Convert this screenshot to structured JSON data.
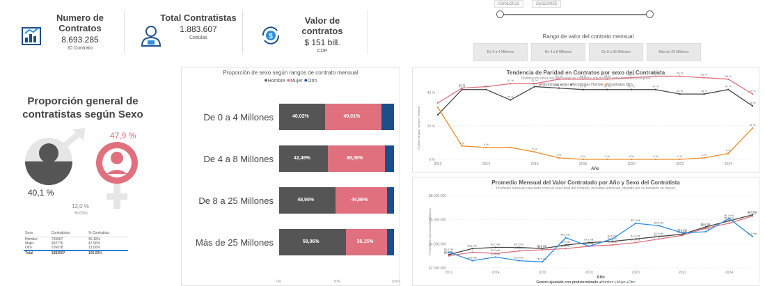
{
  "kpis": [
    {
      "title": "Numero de Contratos",
      "value": "8.693.285",
      "sub": "ID Contrato",
      "icon": "chart-document-icon"
    },
    {
      "title": "Total Contratistas",
      "value": "1.883.607",
      "sub": "Cedulas",
      "icon": "person-badge-icon"
    },
    {
      "title": "Valor de contratos",
      "value": "$ 151 bill.",
      "sub": "CDP",
      "icon": "dollar-refresh-icon"
    }
  ],
  "date_slicer": {
    "start": "01/01/2012",
    "end": "26/12/2025"
  },
  "range_slicer": {
    "title": "Rango de valor del contrato mensual",
    "buttons": [
      "De 0 a 4 Millones",
      "De 4 a 8 Millones",
      "De 8 a 25 Millones",
      "Más de 25 Millones"
    ]
  },
  "gender_panel": {
    "title": "Proporción general de contratistas según Sexo",
    "female_pct": "47,9 %",
    "male_pct": "40,1 %",
    "other_pct": "12,0 %",
    "other_label": "% Otro",
    "colors": {
      "male": "#555555",
      "female": "#e0707e",
      "other": "#1c4f8a"
    },
    "table": {
      "headers": [
        "Sexo",
        "Contratistas",
        "% Contratista"
      ],
      "rows": [
        [
          "Hombre",
          "755067",
          "40,10%"
        ],
        [
          "Mujer",
          "902776",
          "47,90%"
        ],
        [
          "Otro",
          "226078",
          "12,00%"
        ]
      ],
      "total": [
        "Total",
        "1883607",
        "100,00%"
      ]
    }
  },
  "chart_data": [
    {
      "type": "bar",
      "orientation": "horizontal-stacked-100",
      "title": "Proporción de sexo según rangos de contrato mensual",
      "legend": [
        "Hombre",
        "Mujer",
        "Otro"
      ],
      "legend_position": "top",
      "categories": [
        "De 0 a 4 Millones",
        "De 4 a 8 Millones",
        "De 8 a 25 Millones",
        "Más de 25 Millones"
      ],
      "series": [
        {
          "name": "Hombre",
          "color": "#555555",
          "values": [
            40.02,
            42.49,
            48.9,
            58.06
          ],
          "labels": [
            "40,02%",
            "42,49%",
            "48,90%",
            "58,06%"
          ]
        },
        {
          "name": "Mujer",
          "color": "#e0707e",
          "values": [
            49.01,
            49.36,
            44.86,
            36.15
          ],
          "labels": [
            "49,01%",
            "49,36%",
            "44,86%",
            "36,15%"
          ]
        },
        {
          "name": "Otro",
          "color": "#1c4f8a",
          "values": [
            10.97,
            8.15,
            6.24,
            5.79
          ]
        }
      ],
      "x_ticks": [
        "0%",
        "50%",
        "100%"
      ]
    },
    {
      "type": "line",
      "title": "Tendencia de Paridad en Contratos por sexo del Contratista",
      "subtitle": "Distribución anual del porcentaje de contratos adjudicados entre hombres y mujeres",
      "legend": [
        "%Contratos mujer",
        "%Contratos Hombre",
        "%Contratos Otro"
      ],
      "xlabel": "Año",
      "ylabel": "Número (ángulo, Número, Hombre, ...",
      "x": [
        2012,
        2013,
        2014,
        2015,
        2016,
        2017,
        2018,
        2019,
        2020,
        2021,
        2022,
        2023,
        2024,
        2025
      ],
      "x_ticks": [
        "2012",
        "2014",
        "2016",
        "2018",
        "2020",
        "2022",
        "2024"
      ],
      "y_ticks": [
        "0 %",
        "20 %",
        "40 %"
      ],
      "ylim": [
        0,
        45
      ],
      "series": [
        {
          "name": "%Contratos mujer",
          "color": "#e0707e",
          "values": [
            38,
            48,
            49,
            51,
            51,
            54,
            54,
            54,
            55,
            56,
            56,
            55,
            54,
            44
          ]
        },
        {
          "name": "%Contratos Hombre",
          "color": "#444444",
          "values": [
            30,
            47,
            47,
            40,
            49,
            48,
            47,
            47,
            47,
            47,
            44,
            44,
            47,
            36
          ]
        },
        {
          "name": "%Contratos Otro",
          "color": "#f08c28",
          "values": [
            35,
            9,
            8,
            8,
            5,
            1,
            0,
            0,
            0,
            0,
            0,
            1,
            4,
            21
          ]
        }
      ],
      "point_labels": {
        "%Contratos mujer": [
          "",
          "48 %",
          "",
          "51 %",
          "51 %",
          "54 %",
          "54 %",
          "54 %",
          "55 %",
          "56 %",
          "56 %",
          "55 %",
          "54 %",
          "44 %"
        ],
        "%Contratos Hombre": [
          "",
          "47 %",
          "47 %",
          "40 %",
          "49 %",
          "48 %",
          "47 %",
          "47 %",
          "47 %",
          "47 %",
          "44 %",
          "44 %",
          "47 %",
          "36 %"
        ],
        "%Contratos Otro": [
          "",
          "9 %",
          "8 %",
          "",
          "5 %",
          "1 %",
          "0 %",
          "0 %",
          "0 %",
          "0 %",
          "0 %",
          "1 %",
          "4 %",
          "21 %"
        ]
      }
    },
    {
      "type": "line",
      "title": "Promedio Mensual del Valor Contratado por Año y Sexo del Contratista",
      "subtitle": "Promedio mensual calculado como el valor total del contrato, incluidas adiciones, dividido por su duración en meses",
      "legend_title": "Genero ajustado con predeterminado",
      "legend": [
        "Hombre",
        "Mujer",
        "Otro"
      ],
      "xlabel": "Año",
      "ylabel": "Promedio de Valor mensual (Millones)",
      "x": [
        2012,
        2013,
        2014,
        2015,
        2016,
        2017,
        2018,
        2019,
        2020,
        2021,
        2022,
        2023,
        2024,
        2025
      ],
      "x_ticks": [
        "2012",
        "2014",
        "2016",
        "2018",
        "2020",
        "2022",
        "2024"
      ],
      "y_ticks": [
        "$2.000.000",
        "$4.000.000",
        "$6.000.000",
        "$8.000.000"
      ],
      "ylim": [
        2,
        8
      ],
      "series": [
        {
          "name": "Hombre",
          "color": "#444444",
          "values": [
            3.1,
            3.6,
            3.7,
            3.7,
            3.6,
            3.9,
            4.1,
            4.2,
            4.4,
            4.6,
            4.8,
            5.4,
            5.9,
            6.4
          ]
        },
        {
          "name": "Mujer",
          "color": "#e0707e",
          "values": [
            3.0,
            3.3,
            3.2,
            3.4,
            3.5,
            3.6,
            3.8,
            3.9,
            4.1,
            4.4,
            4.7,
            5.3,
            5.7,
            6.3
          ]
        },
        {
          "name": "Otro",
          "color": "#2d8de0",
          "values": [
            3.3,
            2.6,
            2.9,
            2.6,
            2.5,
            4.5,
            3.8,
            4.4,
            5.7,
            5.5,
            4.9,
            5.0,
            6.1,
            4.6
          ]
        }
      ],
      "point_labels": {
        "Hombre": [
          "$3,1 mill.",
          "$3,6 mill.",
          "$3,7 mill.",
          "$3,7 mill.",
          "$3,6 mill.",
          "$3,9 mill.",
          "$4,1 mill.",
          "$4,2 mill.",
          "$4,4 mill.",
          "$4,6 mill.",
          "$4,8 mill.",
          "$5,4 mill.",
          "$5,9 mill.",
          "$6,4 mill."
        ],
        "Mujer": [
          "$3,0 mill.",
          "",
          "$3,2 mill.",
          "$3,4 mill.",
          "$3,5 mill.",
          "$3,6 mill.",
          "$3,8 mill.",
          "$3,9 mill.",
          "$4,1 mill.",
          "$4,4 mill.",
          "$4,7 mill.",
          "$5,3 mill.",
          "$5,7 mill.",
          "$6,3 mill."
        ],
        "Otro": [
          "$3,3 mill.",
          "$2,6 mill.",
          "$2,9 mill.",
          "$2,6 mill.",
          "$2,5 mill.",
          "$4,5 mill.",
          "$3,8 mill.",
          "$4,4 mill.",
          "$5,7 mill.",
          "$5,5 mill.",
          "$4,9 mill.",
          "$5,0 mill.",
          "$6,1 mill.",
          "$4,6 mill."
        ]
      }
    }
  ]
}
